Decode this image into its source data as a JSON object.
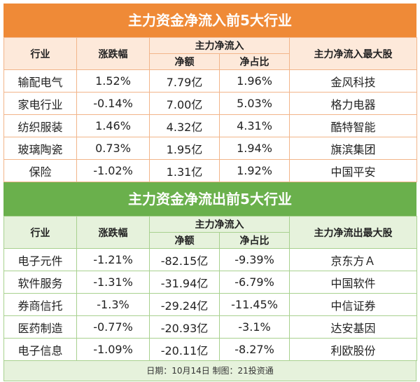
{
  "inflow": {
    "title": "主力资金净流入前5大行业",
    "headers": {
      "industry": "行业",
      "change": "涨跌幅",
      "net_group": "主力净流入",
      "net_amount": "净额",
      "net_ratio": "净占比",
      "top_stock": "主力净流入最大股"
    },
    "rows": [
      {
        "industry": "输配电气",
        "change": "1.52%",
        "amount": "7.79亿",
        "ratio": "1.96%",
        "stock": "金风科技"
      },
      {
        "industry": "家电行业",
        "change": "-0.14%",
        "amount": "7.00亿",
        "ratio": "5.03%",
        "stock": "格力电器"
      },
      {
        "industry": "纺织服装",
        "change": "1.46%",
        "amount": "4.32亿",
        "ratio": "4.31%",
        "stock": "酷特智能"
      },
      {
        "industry": "玻璃陶瓷",
        "change": "0.73%",
        "amount": "1.95亿",
        "ratio": "1.94%",
        "stock": "旗滨集团"
      },
      {
        "industry": "保险",
        "change": "-1.02%",
        "amount": "1.31亿",
        "ratio": "1.92%",
        "stock": "中国平安"
      }
    ]
  },
  "outflow": {
    "title": "主力资金净流出前5大行业",
    "headers": {
      "industry": "行业",
      "change": "涨跌幅",
      "net_group": "主力净流入",
      "net_amount": "净额",
      "net_ratio": "净占比",
      "top_stock": "主力净流出最大股"
    },
    "rows": [
      {
        "industry": "电子元件",
        "change": "-1.21%",
        "amount": "-82.15亿",
        "ratio": "-9.39%",
        "stock": "京东方Ａ"
      },
      {
        "industry": "软件服务",
        "change": "-1.31%",
        "amount": "-31.94亿",
        "ratio": "-6.79%",
        "stock": "中国软件"
      },
      {
        "industry": "券商信托",
        "change": "-1.3%",
        "amount": "-29.24亿",
        "ratio": "-11.45%",
        "stock": "中信证券"
      },
      {
        "industry": "医药制造",
        "change": "-0.77%",
        "amount": "-20.93亿",
        "ratio": "-3.1%",
        "stock": "达安基因"
      },
      {
        "industry": "电子信息",
        "change": "-1.09%",
        "amount": "-20.11亿",
        "ratio": "-8.27%",
        "stock": "利欧股份"
      }
    ]
  },
  "footer": {
    "text": "日期：10月14日 制图：21投资通"
  },
  "colors": {
    "inflow_accent": "#ef8a37",
    "outflow_accent": "#6ab04c"
  }
}
